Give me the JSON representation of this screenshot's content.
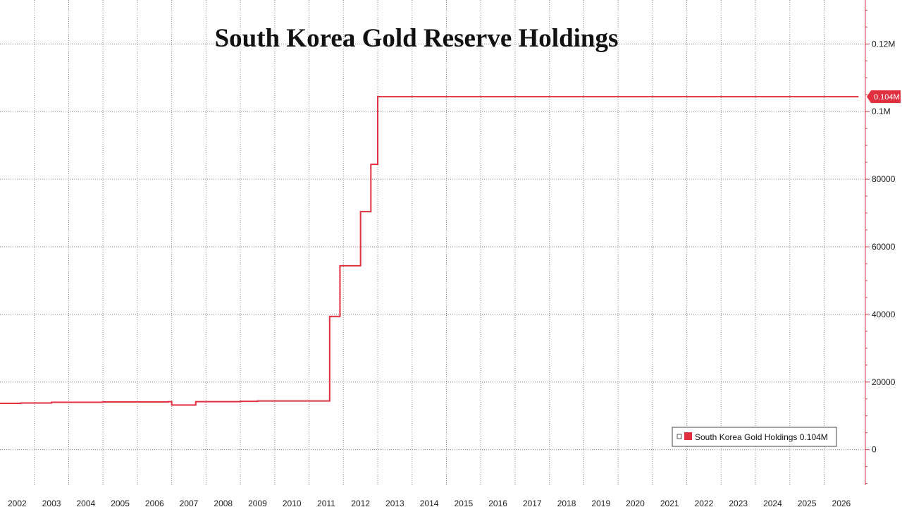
{
  "chart_data": {
    "type": "line",
    "title": "South Korea Gold Reserve Holdings",
    "xlabel": "",
    "ylabel": "",
    "x_tick_labels": [
      "2002",
      "2003",
      "2004",
      "2005",
      "2006",
      "2007",
      "2008",
      "2009",
      "2010",
      "2011",
      "2012",
      "2013",
      "2014",
      "2015",
      "2016",
      "2017",
      "2018",
      "2019",
      "2020",
      "2021",
      "2022",
      "2023",
      "2024",
      "2025",
      "2026"
    ],
    "y_ticks": [
      {
        "value": 0,
        "label": "0"
      },
      {
        "value": 20000,
        "label": "20000"
      },
      {
        "value": 40000,
        "label": "40000"
      },
      {
        "value": 60000,
        "label": "60000"
      },
      {
        "value": 80000,
        "label": "80000"
      },
      {
        "value": 100000,
        "label": "0.1M"
      },
      {
        "value": 120000,
        "label": "0.12M"
      }
    ],
    "ylim": [
      -10500,
      133000
    ],
    "xlim": [
      2001.5,
      2026.7
    ],
    "grid": true,
    "y_axis_side": "right",
    "legend_position": "bottom-right",
    "series": [
      {
        "name": "South Korea Gold Holdings",
        "legend_label": "South Korea Gold Holdings 0.104M",
        "last_value_label": "0.104M",
        "color": "#e0303f",
        "step": true,
        "points": [
          [
            2001.5,
            13700
          ],
          [
            2002.1,
            13800
          ],
          [
            2003.0,
            14000
          ],
          [
            2004.5,
            14100
          ],
          [
            2006.4,
            14200
          ],
          [
            2006.5,
            13200
          ],
          [
            2007.1,
            13200
          ],
          [
            2007.2,
            14200
          ],
          [
            2008.5,
            14300
          ],
          [
            2009.0,
            14400
          ],
          [
            2011.0,
            14400
          ],
          [
            2011.1,
            39400
          ],
          [
            2011.4,
            54400
          ],
          [
            2012.0,
            70400
          ],
          [
            2012.3,
            84400
          ],
          [
            2012.5,
            104400
          ],
          [
            2026.5,
            104400
          ]
        ]
      }
    ]
  }
}
